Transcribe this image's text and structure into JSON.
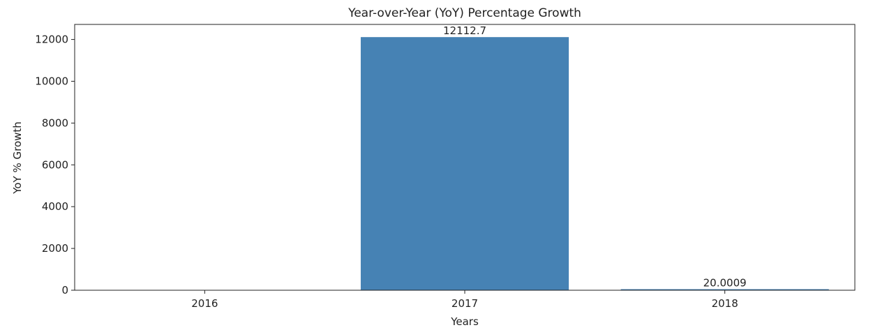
{
  "chart_data": {
    "type": "bar",
    "title": "Year-over-Year (YoY) Percentage Growth",
    "xlabel": "Years",
    "ylabel": "YoY % Growth",
    "categories": [
      "2016",
      "2017",
      "2018"
    ],
    "values": [
      0,
      12112.7,
      20.0009
    ],
    "data_labels": [
      "",
      "12112.7",
      "20.0009"
    ],
    "ylim": [
      0,
      12720
    ],
    "yticks": [
      0,
      2000,
      4000,
      6000,
      8000,
      10000,
      12000
    ],
    "ytick_labels": [
      "0",
      "2000",
      "4000",
      "6000",
      "8000",
      "10000",
      "12000"
    ],
    "grid": false,
    "bar_color": "#4682b4"
  }
}
